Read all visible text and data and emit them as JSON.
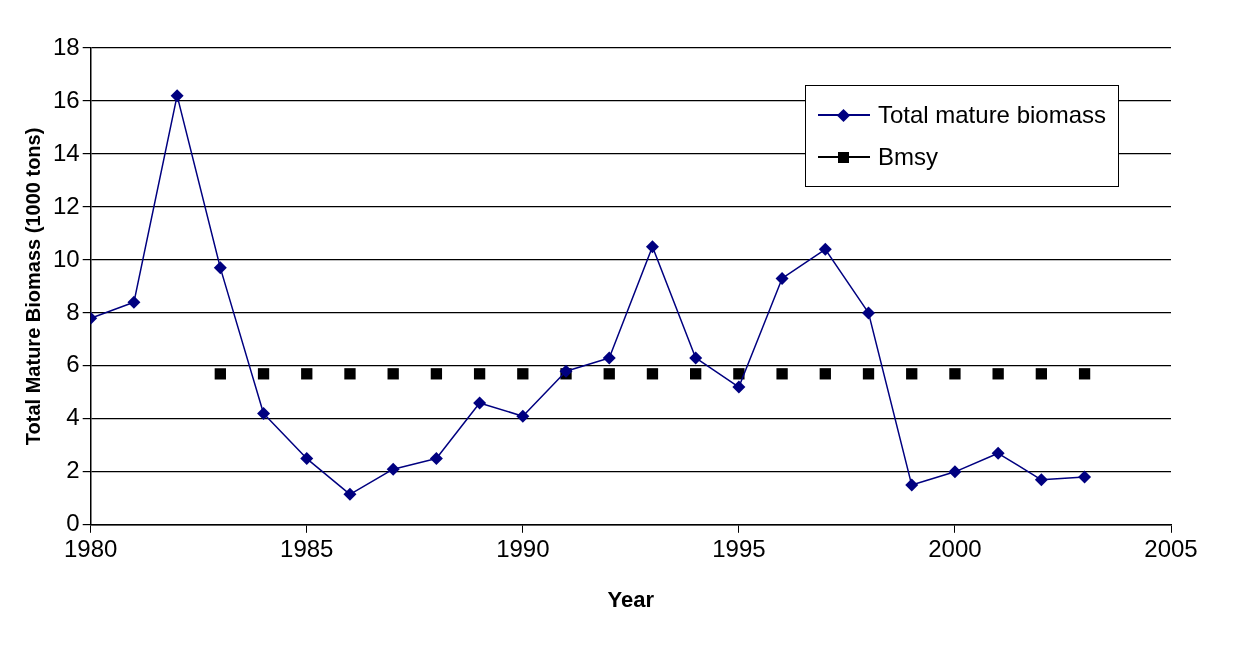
{
  "chart_data": {
    "type": "line",
    "xlabel": "Year",
    "ylabel": "Total Mature Biomass (1000 tons)",
    "xlim": [
      1980,
      2005
    ],
    "xticks": [
      1980,
      1985,
      1990,
      1995,
      2000,
      2005
    ],
    "ylim": [
      0,
      18
    ],
    "yticks": [
      0,
      2,
      4,
      6,
      8,
      10,
      12,
      14,
      16,
      18
    ],
    "grid": "y",
    "legend": "top right",
    "series": [
      {
        "name": "Total mature biomass",
        "color": "#000080",
        "marker": "diamond",
        "line_style": "solid",
        "x": [
          1980,
          1981,
          1982,
          1983,
          1984,
          1985,
          1986,
          1987,
          1988,
          1989,
          1990,
          1991,
          1992,
          1993,
          1994,
          1995,
          1996,
          1997,
          1998,
          1999,
          2000,
          2001,
          2002,
          2003
        ],
        "values": [
          7.8,
          8.4,
          16.2,
          9.7,
          4.2,
          2.5,
          1.15,
          2.1,
          2.5,
          4.6,
          4.1,
          5.8,
          6.3,
          10.5,
          6.3,
          5.2,
          9.3,
          10.4,
          8.0,
          1.5,
          2.0,
          2.7,
          1.7,
          1.8
        ]
      },
      {
        "name": "Bmsy",
        "type": "scatter",
        "color": "#000000",
        "marker": "square",
        "x": [
          1983,
          1984,
          1985,
          1986,
          1987,
          1988,
          1989,
          1990,
          1991,
          1992,
          1993,
          1994,
          1995,
          1996,
          1997,
          1998,
          1999,
          2000,
          2001,
          2002,
          2003
        ],
        "values": [
          5.7,
          5.7,
          5.7,
          5.7,
          5.7,
          5.7,
          5.7,
          5.7,
          5.7,
          5.7,
          5.7,
          5.7,
          5.7,
          5.7,
          5.7,
          5.7,
          5.7,
          5.7,
          5.7,
          5.7,
          5.7
        ]
      }
    ]
  }
}
